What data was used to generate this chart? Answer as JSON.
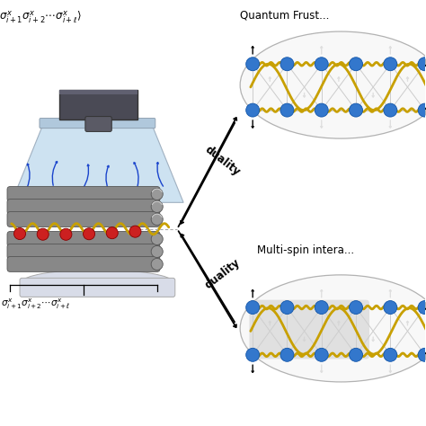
{
  "bg_color": "#ffffff",
  "top_label": "$\\sigma_{i+1}^x \\sigma_{i+2}^x \\cdots \\sigma_{i+\\ell}^x\\rangle$",
  "bottom_label": "$\\sigma_{i+1}^x \\sigma_{i+2}^x \\cdots \\sigma_{i+\\ell}^x$",
  "label_top_right": "Quantum Frust...",
  "label_bot_right": "Multi-spin intera...",
  "duality1": "duality",
  "duality2": "duality",
  "ion_color": "#cc2020",
  "chain_color": "#c8a000",
  "rod_color": "#888888",
  "blue_dot_color": "#3377cc",
  "trap_fill": "#cce4f5",
  "trap_edge": "#aabbcc",
  "funnel_base": "#d0d5e0",
  "rod_fill": "#8a8a8a",
  "rod_edge": "#555555"
}
